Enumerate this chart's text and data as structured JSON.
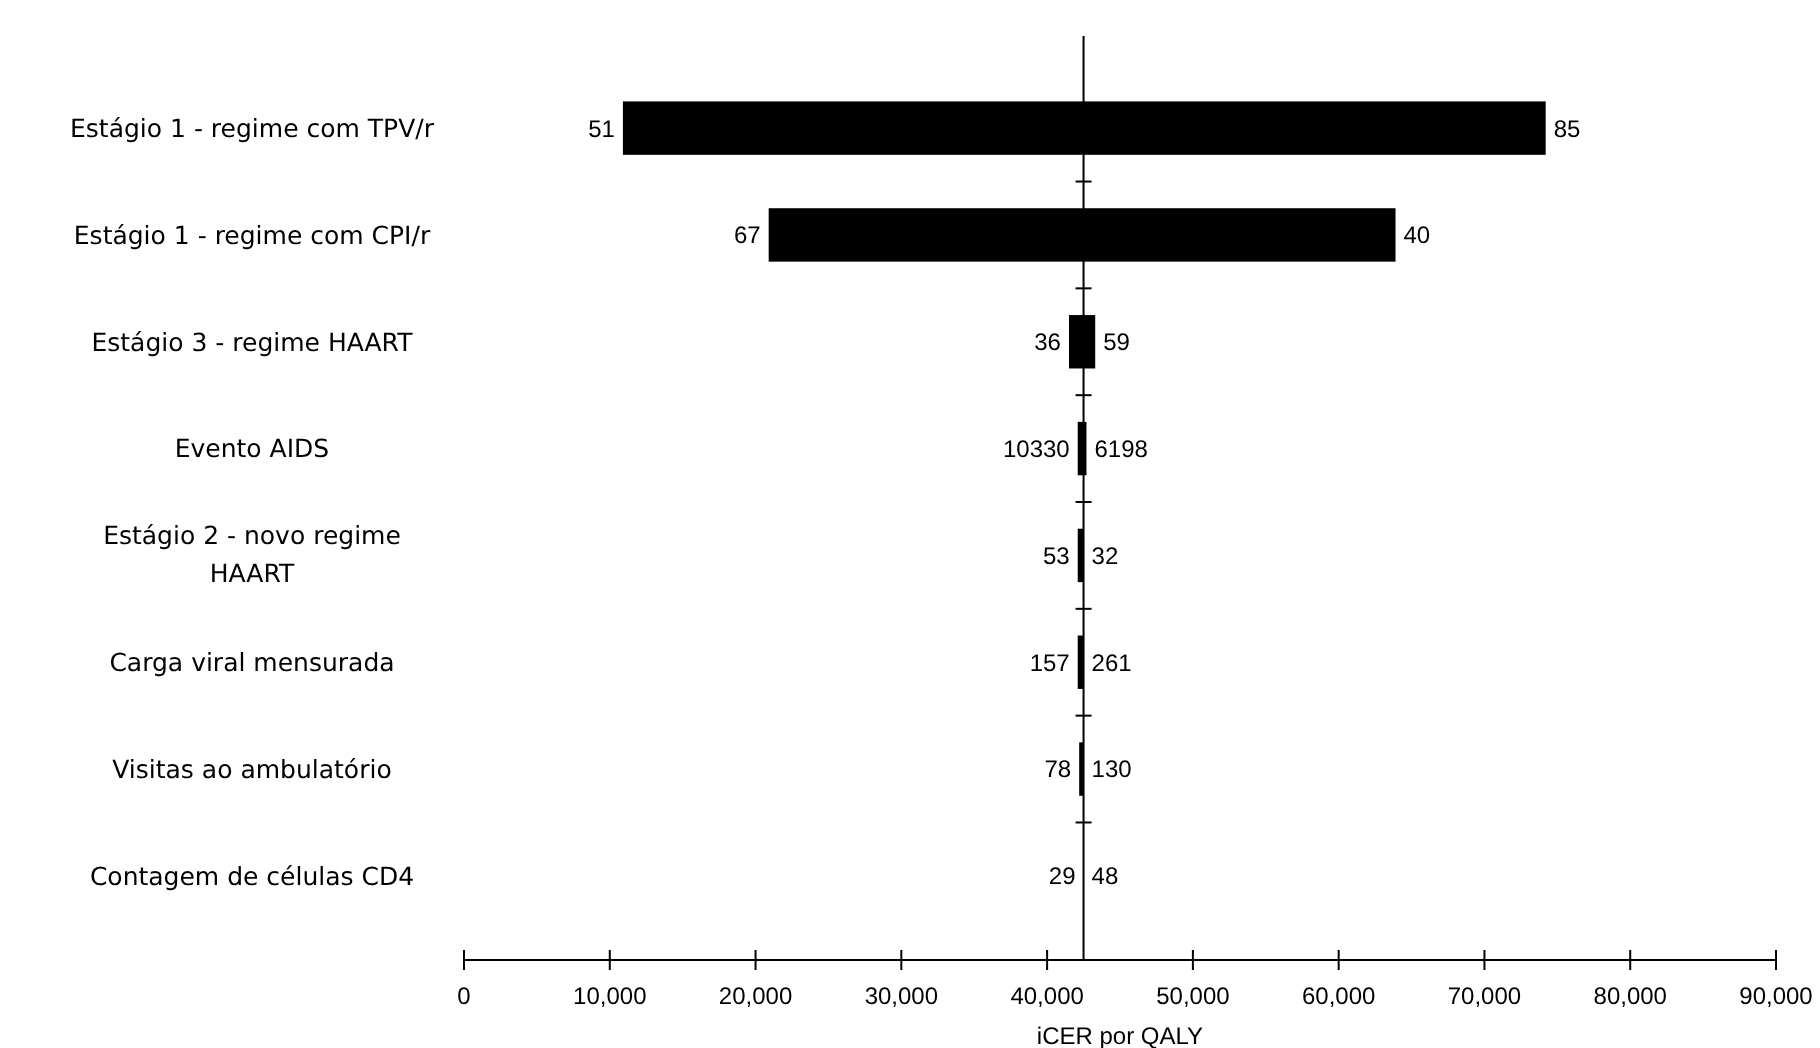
{
  "chart_data": {
    "type": "bar",
    "orientation": "horizontal",
    "xlabel": "iCER por QALY",
    "categories": [
      "Estágio 1 - regime com TPV/r",
      "Estágio 1 - regime com CPI/r",
      "Estágio 3 - regime HAART",
      "Evento AIDS",
      "Estágio 2 - novo regime HAART",
      "Carga viral mensurada",
      "Visitas ao ambulatório",
      "Contagem de células CD4"
    ],
    "base": [
      10900,
      20900,
      41500,
      42100,
      42100,
      42100,
      42200,
      42500
    ],
    "values": [
      63300,
      43000,
      1800,
      600,
      400,
      400,
      300,
      0
    ],
    "color": "#000000",
    "xlim": [
      0,
      90000
    ],
    "xticks": [
      0,
      {
        "value": 10000,
        "label": "10,000"
      },
      {
        "value": 20000,
        "label": "20,000"
      },
      {
        "value": 30000,
        "label": "30,000"
      },
      {
        "value": 40000,
        "label": "40,000"
      },
      {
        "value": 50000,
        "label": "50,000"
      },
      {
        "value": 60000,
        "label": "60,000"
      },
      {
        "value": 70000,
        "label": "70,000"
      },
      {
        "value": 80000,
        "label": "80,000"
      },
      {
        "value": 90000,
        "label": "90,000"
      }
    ],
    "ref_lines": [
      {
        "axis": "x",
        "value": 42500,
        "color": "#000000"
      }
    ],
    "grid": false,
    "annotations": [
      {
        "text": "51",
        "x": 10900,
        "y": "Estágio 1 - regime com TPV/r"
      },
      {
        "text": "85",
        "x": 74200,
        "y": "Estágio 1 - regime com TPV/r"
      },
      {
        "text": "67",
        "x": 20900,
        "y": "Estágio 1 - regime com CPI/r"
      },
      {
        "text": "40",
        "x": 63900,
        "y": "Estágio 1 - regime com CPI/r"
      },
      {
        "text": "36",
        "x": 41500,
        "y": "Estágio 3 - regime HAART"
      },
      {
        "text": "59",
        "x": 43300,
        "y": "Estágio 3 - regime HAART"
      },
      {
        "text": "10330",
        "x": 42100,
        "y": "Evento AIDS"
      },
      {
        "text": "6198",
        "x": 42700,
        "y": "Evento AIDS"
      },
      {
        "text": "53",
        "x": 42100,
        "y": "Estágio 2 - novo regime HAART"
      },
      {
        "text": "32",
        "x": 42500,
        "y": "Estágio 2 - novo regime HAART"
      },
      {
        "text": "157",
        "x": 42100,
        "y": "Carga viral mensurada"
      },
      {
        "text": "261",
        "x": 42500,
        "y": "Carga viral mensurada"
      },
      {
        "text": "78",
        "x": 42200,
        "y": "Visitas ao ambulatório"
      },
      {
        "text": "130",
        "x": 42500,
        "y": "Visitas ao ambulatório"
      },
      {
        "text": "29",
        "x": 42500,
        "y": "Contagem de células CD4"
      },
      {
        "text": "48",
        "x": 42500,
        "y": "Contagem de células CD4"
      }
    ]
  }
}
